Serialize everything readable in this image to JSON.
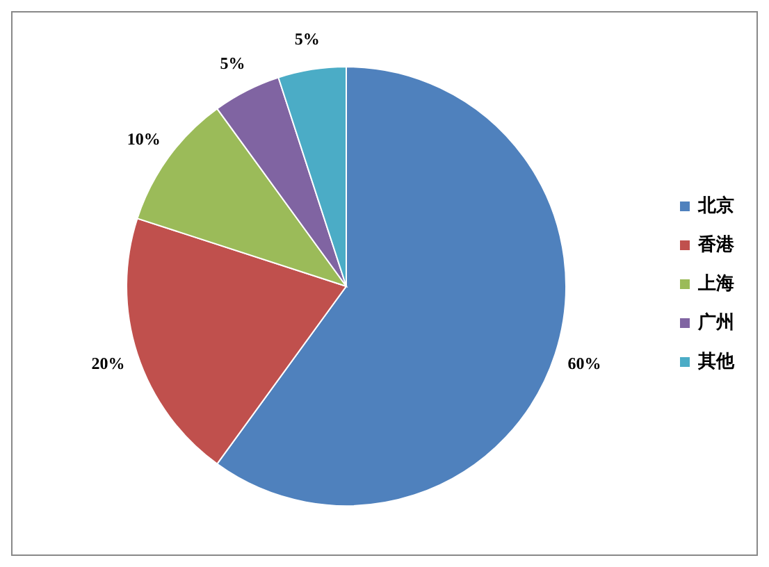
{
  "chart_data": {
    "type": "pie",
    "categories": [
      "北京",
      "香港",
      "上海",
      "广州",
      "其他"
    ],
    "values": [
      60,
      20,
      10,
      5,
      5
    ],
    "colors": [
      "#4f81bd",
      "#c0504d",
      "#9bbb59",
      "#8064a2",
      "#4bacc6"
    ],
    "value_labels": [
      "60%",
      "20%",
      "10%",
      "5%",
      "5%"
    ],
    "legend": "right"
  }
}
